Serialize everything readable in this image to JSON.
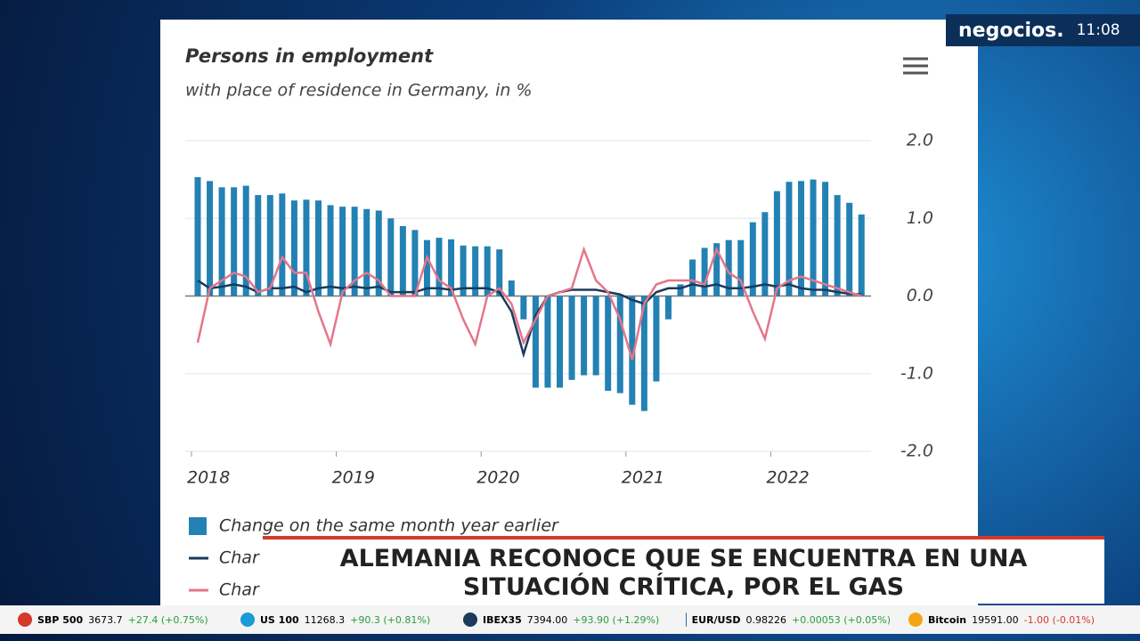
{
  "chart_data": {
    "type": "bar-line",
    "title": "Persons in employment",
    "subtitle": "with place of residence in Germany, in %",
    "categories": [
      "2018",
      null,
      null,
      null,
      null,
      null,
      null,
      null,
      null,
      null,
      null,
      null,
      "2019",
      null,
      null,
      null,
      null,
      null,
      null,
      null,
      null,
      null,
      null,
      null,
      "2020",
      null,
      null,
      null,
      null,
      null,
      null,
      null,
      null,
      null,
      null,
      null,
      "2021",
      null,
      null,
      null,
      null,
      null,
      null,
      null,
      null,
      null,
      null,
      null,
      "2022",
      null,
      null,
      null,
      null,
      null,
      null,
      null
    ],
    "series": [
      {
        "name": "Change on the same month year earlier",
        "type": "bar",
        "color": "#2381b3",
        "values": [
          1.53,
          1.48,
          1.4,
          1.4,
          1.42,
          1.3,
          1.3,
          1.32,
          1.23,
          1.24,
          1.23,
          1.17,
          1.15,
          1.15,
          1.12,
          1.1,
          1.0,
          0.9,
          0.85,
          0.72,
          0.75,
          0.73,
          0.65,
          0.64,
          0.64,
          0.6,
          0.2,
          -0.3,
          -1.18,
          -1.18,
          -1.18,
          -1.08,
          -1.02,
          -1.02,
          -1.22,
          -1.25,
          -1.4,
          -1.48,
          -1.1,
          -0.3,
          0.15,
          0.47,
          0.62,
          0.68,
          0.72,
          0.72,
          0.95,
          1.08,
          1.35,
          1.47,
          1.48,
          1.5,
          1.47,
          1.3,
          1.2,
          1.05
        ]
      },
      {
        "name": "Char",
        "type": "line",
        "color": "#1b3a5c",
        "values": [
          0.2,
          0.1,
          0.12,
          0.15,
          0.12,
          0.05,
          0.1,
          0.1,
          0.12,
          0.05,
          0.1,
          0.12,
          0.1,
          0.12,
          0.1,
          0.12,
          0.05,
          0.05,
          0.05,
          0.1,
          0.1,
          0.08,
          0.1,
          0.1,
          0.1,
          0.05,
          -0.2,
          -0.75,
          -0.25,
          0.0,
          0.05,
          0.08,
          0.08,
          0.08,
          0.05,
          0.02,
          -0.05,
          -0.1,
          0.05,
          0.1,
          0.1,
          0.15,
          0.12,
          0.15,
          0.1,
          0.1,
          0.12,
          0.15,
          0.12,
          0.15,
          0.1,
          0.08,
          0.08,
          0.05,
          0.03,
          0.02
        ]
      },
      {
        "name": "Char",
        "type": "line",
        "color": "#e3768a",
        "values": [
          -0.6,
          0.1,
          0.2,
          0.3,
          0.25,
          0.05,
          0.1,
          0.5,
          0.3,
          0.3,
          -0.2,
          -0.62,
          0.05,
          0.2,
          0.3,
          0.2,
          0.0,
          0.0,
          0.0,
          0.5,
          0.2,
          0.1,
          -0.3,
          -0.62,
          0.0,
          0.1,
          -0.1,
          -0.6,
          -0.3,
          0.0,
          0.05,
          0.1,
          0.6,
          0.2,
          0.05,
          -0.3,
          -0.82,
          -0.1,
          0.15,
          0.2,
          0.2,
          0.2,
          0.15,
          0.6,
          0.3,
          0.2,
          -0.2,
          -0.55,
          0.1,
          0.2,
          0.25,
          0.2,
          0.15,
          0.1,
          0.05,
          0.0
        ]
      }
    ],
    "ylim": [
      -2.0,
      2.0
    ],
    "yticks": [
      {
        "value": 2,
        "label": "2.0"
      },
      {
        "value": 1,
        "label": "1.0"
      },
      {
        "value": 0,
        "label": "0.0"
      },
      {
        "value": -1,
        "label": "-1.0"
      },
      {
        "value": -2,
        "label": "-2.0"
      }
    ],
    "grid": true
  },
  "broadcast": {
    "logo": "negocios.",
    "time": "11:08",
    "headline": [
      "ALEMANIA RECONOCE QUE SE ENCUENTRA EN UNA",
      "SITUACIÓN CRÍTICA, POR EL GAS"
    ],
    "ticker": [
      {
        "name": "SBP 500",
        "value": "3673.7",
        "change": "+27.4 (+0.75%)"
      },
      {
        "name": "US 100",
        "value": "11268.3",
        "change": "+90.3 (+0.81%)"
      },
      {
        "name": "IBEX35",
        "value": "7394.00",
        "change": "+93.90 (+1.29%)"
      },
      {
        "name": "EUR/USD",
        "value": "0.98226",
        "change": "+0.00053 (+0.05%)"
      },
      {
        "name": "Bitcoin",
        "value": "19591.00",
        "change": "-1.00 (-0.01%)"
      }
    ]
  }
}
